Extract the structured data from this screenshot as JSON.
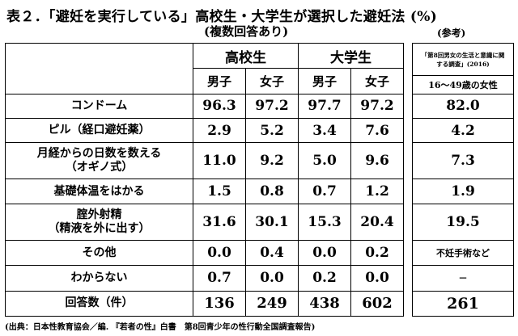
{
  "title": "表２．「避妊を実行している」高校生・大学生が選択した避妊法 (%)",
  "subtitle": "(複数回答あり)",
  "reference_note": "(参考)",
  "groups": {
    "high_school": "高校生",
    "university": "大学生"
  },
  "sexes": {
    "male": "男子",
    "female": "女子"
  },
  "reference": {
    "source_line1": "「第8回男女の生活と意識に関",
    "source_line2": "する調査」(2016)",
    "header": "16～49歳の女性"
  },
  "rows": [
    {
      "label": "コンドーム",
      "label2": "",
      "hs_m": "96.3",
      "hs_f": "97.2",
      "u_m": "97.7",
      "u_f": "97.2",
      "ref": "82.0"
    },
    {
      "label": "ピル（経口避妊薬）",
      "label2": "",
      "hs_m": "2.9",
      "hs_f": "5.2",
      "u_m": "3.4",
      "u_f": "7.6",
      "ref": "4.2"
    },
    {
      "label": "月経からの日数を数える",
      "label2": "（オギノ式）",
      "hs_m": "11.0",
      "hs_f": "9.2",
      "u_m": "5.0",
      "u_f": "9.6",
      "ref": "7.3"
    },
    {
      "label": "基礎体温をはかる",
      "label2": "",
      "hs_m": "1.5",
      "hs_f": "0.8",
      "u_m": "0.7",
      "u_f": "1.2",
      "ref": "1.9"
    },
    {
      "label": "腟外射精",
      "label2": "（精液を外に出す）",
      "hs_m": "31.6",
      "hs_f": "30.1",
      "u_m": "15.3",
      "u_f": "20.4",
      "ref": "19.5"
    },
    {
      "label": "その他",
      "label2": "",
      "hs_m": "0.0",
      "hs_f": "0.4",
      "u_m": "0.0",
      "u_f": "0.2",
      "ref": "不妊手術など"
    },
    {
      "label": "わからない",
      "label2": "",
      "hs_m": "0.7",
      "hs_f": "0.0",
      "u_m": "0.2",
      "u_f": "0.0",
      "ref": "－"
    },
    {
      "label": "回答数（件）",
      "label2": "",
      "hs_m": "136",
      "hs_f": "249",
      "u_m": "438",
      "u_f": "602",
      "ref": "261"
    }
  ],
  "source": "(出典：日本性教育協会／編. 『若者の性』白書　第8回青少年の性行動全国調査報告)"
}
